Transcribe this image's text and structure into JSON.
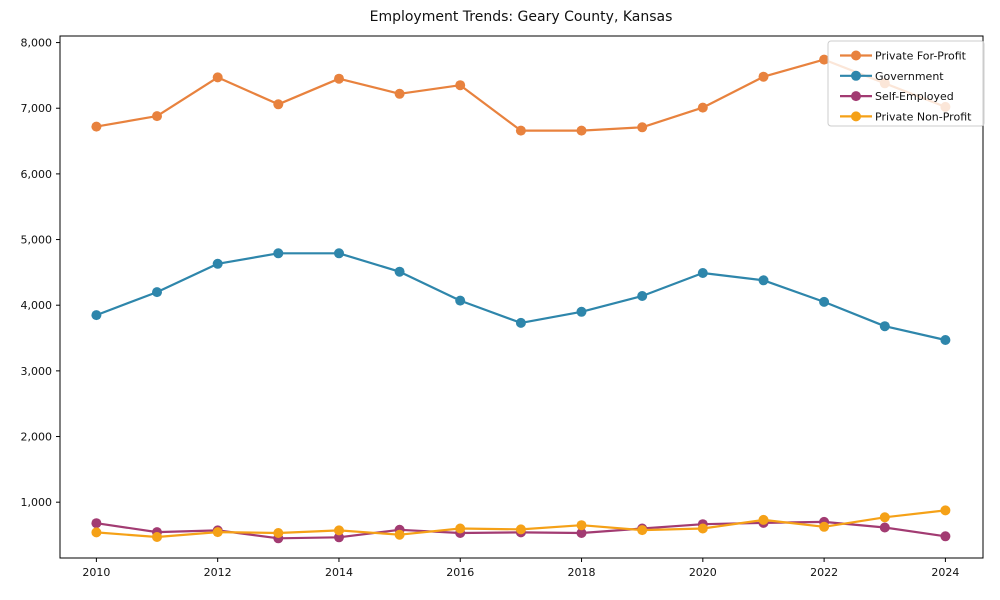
{
  "chart_data": {
    "type": "line",
    "title": "Employment Trends: Geary County, Kansas",
    "xlabel": "",
    "ylabel": "",
    "x": [
      2010,
      2011,
      2012,
      2013,
      2014,
      2015,
      2016,
      2017,
      2018,
      2019,
      2020,
      2021,
      2022,
      2023,
      2024
    ],
    "xticks": [
      2010,
      2012,
      2014,
      2016,
      2018,
      2020,
      2022,
      2024
    ],
    "yticks": [
      1000,
      2000,
      3000,
      4000,
      5000,
      6000,
      7000,
      8000
    ],
    "ytick_labels": [
      "1,000",
      "2,000",
      "3,000",
      "4,000",
      "5,000",
      "6,000",
      "7,000",
      "8,000"
    ],
    "xlim": [
      2009.4,
      2024.62
    ],
    "ylim": [
      150,
      8100
    ],
    "grid": false,
    "legend_position": "upper-right",
    "marker": "circle",
    "series": [
      {
        "name": "Private For-Profit",
        "color": "#e8823e",
        "values": [
          6720,
          6880,
          7470,
          7060,
          7450,
          7220,
          7350,
          6660,
          6660,
          6710,
          7010,
          7480,
          7740,
          7380,
          7020
        ]
      },
      {
        "name": "Government",
        "color": "#2e86ab",
        "values": [
          3850,
          4200,
          4630,
          4790,
          4790,
          4510,
          4070,
          3730,
          3900,
          4140,
          4490,
          4380,
          4050,
          3680,
          3470
        ]
      },
      {
        "name": "Self-Employed",
        "color": "#a23b72",
        "values": [
          680,
          545,
          570,
          450,
          465,
          580,
          530,
          540,
          530,
          600,
          665,
          685,
          700,
          615,
          480
        ]
      },
      {
        "name": "Private Non-Profit",
        "color": "#f5a117",
        "values": [
          540,
          470,
          545,
          530,
          570,
          505,
          600,
          585,
          650,
          575,
          600,
          730,
          625,
          770,
          875
        ]
      }
    ],
    "spine_color": "#000000",
    "legend_border_color": "#cccccc",
    "legend_background": "rgba(255,255,255,0.8)"
  }
}
